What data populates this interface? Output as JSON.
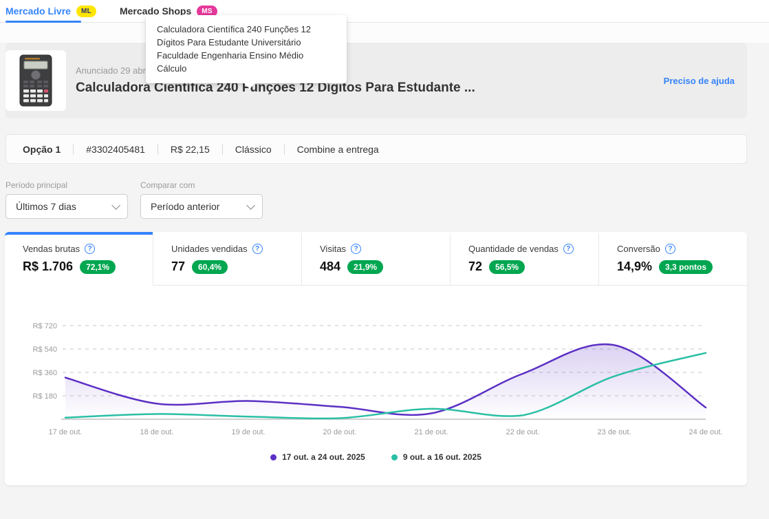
{
  "colors": {
    "accent_blue": "#3483fa",
    "badge_yellow": "#ffe600",
    "badge_pink": "#e5399b",
    "positive_green": "#00a650",
    "series_purple": "#5b30c4",
    "series_teal": "#2abfa5"
  },
  "top_tabs": [
    {
      "label": "Mercado Livre",
      "badge": "ML"
    },
    {
      "label": "Mercado Shops",
      "badge": "MS"
    }
  ],
  "tooltip": {
    "text": "Calculadora Científica 240 Funções 12 Dígitos Para Estudante Universitário Faculdade Engenharia Ensino Médio Cálculo"
  },
  "product": {
    "announced_date": "Anunciado 29 abr. 2023",
    "title": "Calculadora Científica 240 Funções 12 Dígitos Para Estudante ...",
    "help_link": "Preciso de ajuda"
  },
  "option_bar": {
    "items": [
      "Opção 1",
      "#3302405481",
      "R$ 22,15",
      "Clássico",
      "Combine a entrega"
    ]
  },
  "filters": {
    "main_period": {
      "label": "Período principal",
      "value": "Últimos 7 dias"
    },
    "compare": {
      "label": "Comparar com",
      "value": "Período anterior"
    }
  },
  "metric_tabs": [
    {
      "label": "Vendas brutas",
      "value": "R$ 1.706",
      "badge": "72,1%",
      "active": true
    },
    {
      "label": "Unidades vendidas",
      "value": "77",
      "badge": "60,4%",
      "active": false
    },
    {
      "label": "Visitas",
      "value": "484",
      "badge": "21,9%",
      "active": false
    },
    {
      "label": "Quantidade de vendas",
      "value": "72",
      "badge": "56,5%",
      "active": false
    },
    {
      "label": "Conversão",
      "value": "14,9%",
      "badge": "3,3 pontos",
      "active": false
    }
  ],
  "chart_data": {
    "type": "line",
    "categories": [
      "17 de out.",
      "18 de out.",
      "19 de out.",
      "20 de out.",
      "21 de out.",
      "22 de out.",
      "23 de out.",
      "24 de out."
    ],
    "yticks": [
      {
        "value": 180,
        "label": "R$ 180"
      },
      {
        "value": 360,
        "label": "R$ 360"
      },
      {
        "value": 540,
        "label": "R$ 540"
      },
      {
        "value": 720,
        "label": "R$ 720"
      }
    ],
    "ylim": [
      0,
      880
    ],
    "grid": "dashed-horizontal",
    "legend_position": "bottom-center",
    "series": [
      {
        "name": "17 out. a 24 out. 2025",
        "color": "#5b30c4",
        "fill": true,
        "values": [
          320,
          120,
          140,
          95,
          45,
          350,
          570,
          90
        ]
      },
      {
        "name": "9 out. a 16 out. 2025",
        "color": "#2abfa5",
        "fill": false,
        "values": [
          12,
          40,
          20,
          8,
          80,
          30,
          330,
          510
        ]
      }
    ]
  }
}
